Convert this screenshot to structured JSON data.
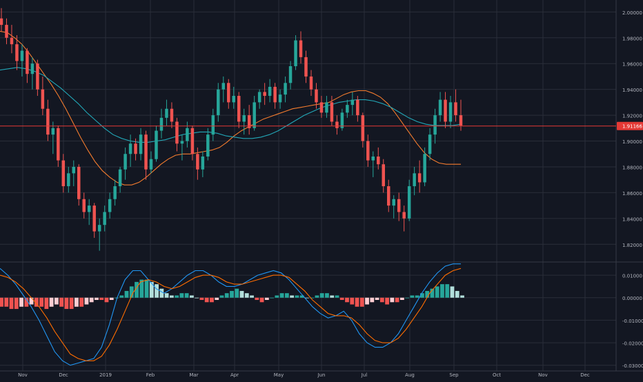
{
  "colors": {
    "background": "#131722",
    "grid": "#2a2e39",
    "axis_text": "#b2b5be",
    "up_candle": "#26a69a",
    "down_candle": "#ef5350",
    "ma_fast": "#f57c2e",
    "ma_slow": "#22a8b8",
    "price_line": "#e53935",
    "price_label_bg": "#e53935",
    "macd_line": "#2196f3",
    "signal_line": "#ff6d00",
    "hist_up_strong": "#26a69a",
    "hist_up_weak": "#b2dfdb",
    "hist_down_strong": "#ef5350",
    "hist_down_weak": "#ffcdd2"
  },
  "chart_data": [
    {
      "type": "candlestick",
      "title": "",
      "ylim": [
        1.81,
        2.005
      ],
      "price_ticks": [
        "1.82000",
        "1.84000",
        "1.86000",
        "1.88000",
        "1.90000",
        "1.92000",
        "1.94000",
        "1.96000",
        "1.98000",
        "2.00000"
      ],
      "last_price": "1.91166",
      "x_labels": [
        "Nov",
        "Dec",
        "2019",
        "Feb",
        "Mar",
        "Apr",
        "May",
        "Jun",
        "Jul",
        "Aug",
        "Sep",
        "Oct",
        "Nov",
        "Dec"
      ],
      "grid": true,
      "ohlc": [
        [
          1.995,
          2.003,
          1.985,
          1.99
        ],
        [
          1.99,
          1.995,
          1.975,
          1.98
        ],
        [
          1.98,
          1.99,
          1.968,
          1.975
        ],
        [
          1.975,
          1.982,
          1.955,
          1.962
        ],
        [
          1.962,
          1.975,
          1.95,
          1.97
        ],
        [
          1.97,
          1.972,
          1.945,
          1.952
        ],
        [
          1.952,
          1.965,
          1.94,
          1.96
        ],
        [
          1.96,
          1.963,
          1.935,
          1.94
        ],
        [
          1.94,
          1.95,
          1.92,
          1.925
        ],
        [
          1.925,
          1.932,
          1.9,
          1.905
        ],
        [
          1.905,
          1.915,
          1.89,
          1.91
        ],
        [
          1.91,
          1.912,
          1.88,
          1.885
        ],
        [
          1.885,
          1.89,
          1.86,
          1.865
        ],
        [
          1.865,
          1.88,
          1.86,
          1.875
        ],
        [
          1.875,
          1.885,
          1.865,
          1.88
        ],
        [
          1.88,
          1.882,
          1.85,
          1.855
        ],
        [
          1.855,
          1.86,
          1.84,
          1.845
        ],
        [
          1.845,
          1.855,
          1.835,
          1.85
        ],
        [
          1.85,
          1.852,
          1.825,
          1.83
        ],
        [
          1.83,
          1.84,
          1.815,
          1.835
        ],
        [
          1.835,
          1.85,
          1.83,
          1.845
        ],
        [
          1.845,
          1.86,
          1.84,
          1.855
        ],
        [
          1.855,
          1.87,
          1.85,
          1.865
        ],
        [
          1.865,
          1.88,
          1.86,
          1.878
        ],
        [
          1.878,
          1.895,
          1.87,
          1.89
        ],
        [
          1.89,
          1.905,
          1.88,
          1.898
        ],
        [
          1.898,
          1.902,
          1.885,
          1.89
        ],
        [
          1.89,
          1.91,
          1.885,
          1.905
        ],
        [
          1.905,
          1.908,
          1.87,
          1.878
        ],
        [
          1.878,
          1.892,
          1.875,
          1.886
        ],
        [
          1.886,
          1.912,
          1.884,
          1.908
        ],
        [
          1.908,
          1.925,
          1.902,
          1.918
        ],
        [
          1.918,
          1.932,
          1.912,
          1.925
        ],
        [
          1.925,
          1.93,
          1.91,
          1.915
        ],
        [
          1.915,
          1.918,
          1.892,
          1.898
        ],
        [
          1.898,
          1.905,
          1.885,
          1.9
        ],
        [
          1.9,
          1.915,
          1.895,
          1.91
        ],
        [
          1.91,
          1.912,
          1.885,
          1.89
        ],
        [
          1.89,
          1.895,
          1.87,
          1.878
        ],
        [
          1.878,
          1.892,
          1.872,
          1.888
        ],
        [
          1.888,
          1.91,
          1.885,
          1.905
        ],
        [
          1.905,
          1.925,
          1.9,
          1.92
        ],
        [
          1.92,
          1.945,
          1.915,
          1.94
        ],
        [
          1.94,
          1.95,
          1.93,
          1.945
        ],
        [
          1.945,
          1.948,
          1.925,
          1.93
        ],
        [
          1.93,
          1.942,
          1.925,
          1.935
        ],
        [
          1.935,
          1.938,
          1.91,
          1.915
        ],
        [
          1.915,
          1.925,
          1.905,
          1.92
        ],
        [
          1.92,
          1.928,
          1.905,
          1.91
        ],
        [
          1.91,
          1.935,
          1.908,
          1.93
        ],
        [
          1.93,
          1.94,
          1.925,
          1.938
        ],
        [
          1.938,
          1.945,
          1.928,
          1.935
        ],
        [
          1.935,
          1.948,
          1.93,
          1.942
        ],
        [
          1.942,
          1.945,
          1.925,
          1.93
        ],
        [
          1.93,
          1.94,
          1.925,
          1.936
        ],
        [
          1.936,
          1.95,
          1.93,
          1.945
        ],
        [
          1.945,
          1.962,
          1.94,
          1.958
        ],
        [
          1.958,
          1.982,
          1.955,
          1.978
        ],
        [
          1.978,
          1.985,
          1.96,
          1.965
        ],
        [
          1.965,
          1.97,
          1.945,
          1.95
        ],
        [
          1.95,
          1.955,
          1.935,
          1.94
        ],
        [
          1.94,
          1.945,
          1.925,
          1.93
        ],
        [
          1.93,
          1.935,
          1.918,
          1.922
        ],
        [
          1.922,
          1.935,
          1.918,
          1.93
        ],
        [
          1.93,
          1.935,
          1.912,
          1.915
        ],
        [
          1.915,
          1.92,
          1.905,
          1.91
        ],
        [
          1.91,
          1.925,
          1.908,
          1.922
        ],
        [
          1.922,
          1.932,
          1.918,
          1.928
        ],
        [
          1.928,
          1.938,
          1.92,
          1.932
        ],
        [
          1.932,
          1.935,
          1.915,
          1.92
        ],
        [
          1.92,
          1.922,
          1.895,
          1.9
        ],
        [
          1.9,
          1.905,
          1.88,
          1.885
        ],
        [
          1.885,
          1.892,
          1.872,
          1.888
        ],
        [
          1.888,
          1.895,
          1.878,
          1.882
        ],
        [
          1.882,
          1.886,
          1.86,
          1.865
        ],
        [
          1.865,
          1.87,
          1.845,
          1.85
        ],
        [
          1.85,
          1.858,
          1.84,
          1.855
        ],
        [
          1.855,
          1.86,
          1.838,
          1.845
        ],
        [
          1.845,
          1.85,
          1.83,
          1.84
        ],
        [
          1.84,
          1.87,
          1.838,
          1.865
        ],
        [
          1.865,
          1.88,
          1.858,
          1.875
        ],
        [
          1.875,
          1.885,
          1.86,
          1.868
        ],
        [
          1.868,
          1.895,
          1.865,
          1.89
        ],
        [
          1.89,
          1.91,
          1.885,
          1.905
        ],
        [
          1.905,
          1.925,
          1.898,
          1.92
        ],
        [
          1.92,
          1.938,
          1.915,
          1.932
        ],
        [
          1.932,
          1.938,
          1.91,
          1.915
        ],
        [
          1.915,
          1.935,
          1.91,
          1.93
        ],
        [
          1.93,
          1.94,
          1.915,
          1.92
        ],
        [
          1.92,
          1.932,
          1.908,
          1.912
        ]
      ],
      "ma_fast": [
        1.985,
        1.984,
        1.98,
        1.975,
        1.968,
        1.96,
        1.952,
        1.944,
        1.935,
        1.925,
        1.914,
        1.903,
        1.893,
        1.884,
        1.877,
        1.872,
        1.868,
        1.866,
        1.866,
        1.868,
        1.872,
        1.877,
        1.882,
        1.886,
        1.889,
        1.89,
        1.89,
        1.891,
        1.892,
        1.893,
        1.895,
        1.899,
        1.904,
        1.908,
        1.911,
        1.914,
        1.917,
        1.919,
        1.921,
        1.923,
        1.925,
        1.926,
        1.927,
        1.928,
        1.929,
        1.93,
        1.933,
        1.936,
        1.938,
        1.939,
        1.939,
        1.937,
        1.934,
        1.929,
        1.922,
        1.914,
        1.906,
        1.898,
        1.891,
        1.886,
        1.883,
        1.882,
        1.882,
        1.882
      ],
      "ma_slow": [
        1.955,
        1.956,
        1.957,
        1.956,
        1.954,
        1.951,
        1.946,
        1.941,
        1.935,
        1.929,
        1.922,
        1.916,
        1.91,
        1.905,
        1.902,
        1.9,
        1.899,
        1.899,
        1.9,
        1.901,
        1.903,
        1.905,
        1.906,
        1.907,
        1.907,
        1.906,
        1.904,
        1.903,
        1.902,
        1.902,
        1.903,
        1.905,
        1.908,
        1.912,
        1.916,
        1.92,
        1.923,
        1.926,
        1.928,
        1.93,
        1.931,
        1.932,
        1.932,
        1.931,
        1.929,
        1.926,
        1.922,
        1.918,
        1.915,
        1.913,
        1.912,
        1.912,
        1.912,
        1.913
      ],
      "series": [
        {
          "name": "",
          "role": "ma_fast"
        },
        {
          "name": "",
          "role": "ma_slow"
        }
      ]
    },
    {
      "type": "macd",
      "title": "",
      "ylim": [
        -0.031,
        0.014
      ],
      "ticks": [
        "0.01000",
        "0.00000",
        "-0.01000",
        "-0.02000",
        "-0.03000"
      ],
      "macd": [
        0.013,
        0.01,
        0.006,
        0.001,
        -0.004,
        -0.01,
        -0.017,
        -0.024,
        -0.028,
        -0.03,
        -0.029,
        -0.028,
        -0.027,
        -0.022,
        -0.012,
        0.0,
        0.008,
        0.012,
        0.012,
        0.008,
        0.004,
        0.002,
        0.004,
        0.007,
        0.01,
        0.012,
        0.012,
        0.01,
        0.007,
        0.005,
        0.005,
        0.006,
        0.008,
        0.01,
        0.011,
        0.012,
        0.011,
        0.008,
        0.004,
        0.0,
        -0.004,
        -0.007,
        -0.009,
        -0.008,
        -0.006,
        -0.01,
        -0.016,
        -0.02,
        -0.022,
        -0.022,
        -0.02,
        -0.016,
        -0.01,
        -0.004,
        0.002,
        0.007,
        0.011,
        0.014,
        0.015,
        0.015
      ],
      "signal": [
        0.01,
        0.009,
        0.007,
        0.004,
        0.0,
        -0.004,
        -0.009,
        -0.015,
        -0.02,
        -0.025,
        -0.027,
        -0.028,
        -0.028,
        -0.026,
        -0.021,
        -0.014,
        -0.006,
        0.002,
        0.007,
        0.008,
        0.007,
        0.005,
        0.004,
        0.005,
        0.007,
        0.009,
        0.01,
        0.01,
        0.009,
        0.007,
        0.006,
        0.006,
        0.007,
        0.008,
        0.009,
        0.01,
        0.01,
        0.009,
        0.006,
        0.003,
        -0.001,
        -0.004,
        -0.007,
        -0.008,
        -0.008,
        -0.009,
        -0.012,
        -0.016,
        -0.019,
        -0.02,
        -0.02,
        -0.018,
        -0.014,
        -0.009,
        -0.004,
        0.002,
        0.006,
        0.01,
        0.012,
        0.013
      ],
      "histogram": [
        -0.004,
        -0.004,
        -0.005,
        -0.005,
        -0.004,
        -0.004,
        -0.003,
        -0.004,
        -0.004,
        -0.005,
        -0.004,
        -0.003,
        -0.004,
        -0.005,
        -0.005,
        -0.004,
        -0.004,
        -0.003,
        -0.002,
        -0.001,
        -0.001,
        -0.002,
        -0.001,
        0.0,
        0.001,
        0.003,
        0.005,
        0.007,
        0.008,
        0.008,
        0.007,
        0.006,
        0.004,
        0.002,
        0.001,
        0.001,
        0.002,
        0.002,
        0.001,
        0.0,
        -0.001,
        -0.002,
        -0.002,
        -0.001,
        0.001,
        0.002,
        0.003,
        0.004,
        0.003,
        0.002,
        0.001,
        -0.001,
        -0.002,
        -0.001,
        0.0,
        0.001,
        0.002,
        0.002,
        0.001,
        0.001,
        0.001,
        0.0,
        0.0,
        0.001,
        0.002,
        0.002,
        0.001,
        0.001,
        -0.001,
        -0.002,
        -0.003,
        -0.004,
        -0.004,
        -0.003,
        -0.002,
        -0.001,
        -0.002,
        -0.003,
        -0.002,
        -0.002,
        -0.001,
        0.0,
        0.001,
        0.001,
        0.002,
        0.003,
        0.004,
        0.005,
        0.006,
        0.006,
        0.005,
        0.003,
        0.001
      ]
    }
  ]
}
